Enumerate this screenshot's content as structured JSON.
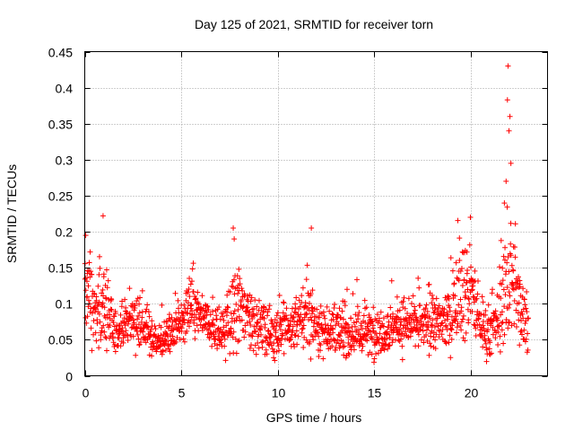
{
  "chart_data": {
    "type": "scatter",
    "title": "Day 125 of 2021, SRMTID for receiver torn",
    "xlabel": "GPS time / hours",
    "ylabel": "SRMTID / TECUs",
    "xlim": [
      0,
      24
    ],
    "ylim": [
      0,
      0.45
    ],
    "x_ticks": [
      0,
      5,
      10,
      15,
      20
    ],
    "y_ticks": [
      0,
      0.05,
      0.1,
      0.15,
      0.2,
      0.25,
      0.3,
      0.35,
      0.4,
      0.45
    ],
    "x_tick_labels": [
      "0",
      "5",
      "10",
      "15",
      "20"
    ],
    "y_tick_labels": [
      "0",
      "0.05",
      "0.1",
      "0.15",
      "0.2",
      "0.25",
      "0.3",
      "0.35",
      "0.4",
      "0.45"
    ],
    "grid": true,
    "marker": "+",
    "color": "#ff0000",
    "x_range_of_data": [
      0,
      23
    ],
    "profile_hours": [
      0,
      0.25,
      0.5,
      1,
      1.5,
      2,
      2.5,
      3,
      3.5,
      4,
      5,
      5.5,
      6,
      6.5,
      7,
      7.5,
      8,
      8.5,
      9,
      9.5,
      10,
      11,
      11.5,
      12,
      13,
      14,
      15,
      16,
      17,
      18,
      19,
      19.5,
      20,
      20.5,
      21,
      21.5,
      22,
      22.5,
      23
    ],
    "profile_median": [
      0.11,
      0.12,
      0.08,
      0.1,
      0.06,
      0.07,
      0.08,
      0.07,
      0.05,
      0.05,
      0.07,
      0.1,
      0.08,
      0.07,
      0.06,
      0.07,
      0.1,
      0.08,
      0.07,
      0.06,
      0.06,
      0.07,
      0.09,
      0.07,
      0.06,
      0.06,
      0.06,
      0.07,
      0.07,
      0.07,
      0.08,
      0.12,
      0.12,
      0.07,
      0.06,
      0.08,
      0.15,
      0.1,
      0.08
    ],
    "profile_spread": [
      0.04,
      0.05,
      0.04,
      0.06,
      0.03,
      0.03,
      0.03,
      0.03,
      0.02,
      0.02,
      0.03,
      0.04,
      0.03,
      0.03,
      0.03,
      0.04,
      0.05,
      0.04,
      0.03,
      0.03,
      0.03,
      0.03,
      0.05,
      0.03,
      0.03,
      0.03,
      0.03,
      0.03,
      0.03,
      0.03,
      0.04,
      0.06,
      0.06,
      0.03,
      0.03,
      0.04,
      0.12,
      0.05,
      0.04
    ],
    "notable_points": [
      {
        "x": 0.05,
        "y": 0.195
      },
      {
        "x": 0.95,
        "y": 0.222
      },
      {
        "x": 7.7,
        "y": 0.205
      },
      {
        "x": 7.75,
        "y": 0.19
      },
      {
        "x": 11.75,
        "y": 0.205
      },
      {
        "x": 20.0,
        "y": 0.22
      },
      {
        "x": 21.95,
        "y": 0.43
      },
      {
        "x": 21.92,
        "y": 0.383
      },
      {
        "x": 22.05,
        "y": 0.36
      },
      {
        "x": 22.1,
        "y": 0.295
      },
      {
        "x": 22.0,
        "y": 0.34
      },
      {
        "x": 21.85,
        "y": 0.27
      }
    ],
    "points_per_hour": 72
  }
}
